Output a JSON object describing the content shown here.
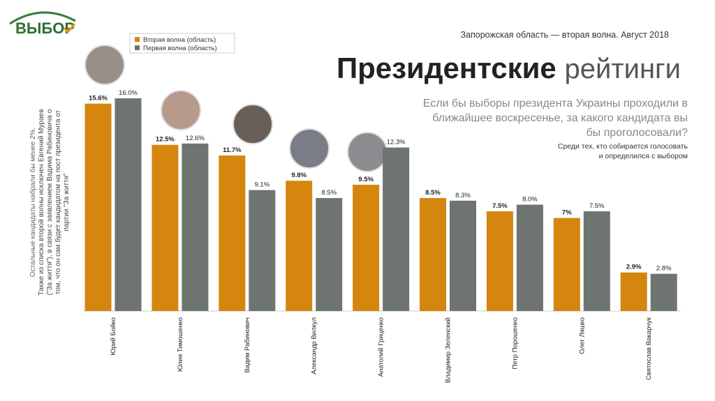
{
  "logo": "ВЫБОР",
  "chart_data": {
    "type": "bar",
    "title": [
      "Президентские",
      "рейтинги"
    ],
    "subtitle": "Запорожская область — вторая волна. Август 2018",
    "question": [
      "Если бы выборы президента Украины проходили в",
      "ближайшее воскресенье, за какого кандидата вы",
      "бы проголосовали?"
    ],
    "note": [
      "Среди тех, кто собирается голосовать",
      "и определился с выбором"
    ],
    "side_note": [
      "Остальные кандидаты набрали бы менее 2%.",
      "Также из списка второй волны исключен Евгений Мураев",
      "(\"За життя\"), в связи с заявлением Вадима Рабиновича о",
      "том, что он сам будет кандидатом на пост президента от",
      "партии \"За життя\""
    ],
    "categories": [
      "Юрий Бойко",
      "Юлия Тимошенко",
      "Вадим Рабинович",
      "Александр Вилкул",
      "Анатолий Гриценко",
      "Владимир Зеленский",
      "Петр Порошенко",
      "Олег Ляшко",
      "Святослав Вакарчук"
    ],
    "series": [
      {
        "name": "Вторая волна (область)",
        "color": "#d4860f",
        "values": [
          15.6,
          12.5,
          11.7,
          9.8,
          9.5,
          8.5,
          7.5,
          7,
          2.9
        ],
        "value_labels": [
          "15.6%",
          "12.5%",
          "11.7%",
          "9.8%",
          "9.5%",
          "8.5%",
          "7.5%",
          "7%",
          "2.9%"
        ]
      },
      {
        "name": "Первая волна (область)",
        "color": "#6e7470",
        "values": [
          16.0,
          12.6,
          9.1,
          8.5,
          12.3,
          8.3,
          8.0,
          7.5,
          2.8
        ],
        "value_labels": [
          "16.0%",
          "12.6%",
          "9.1%",
          "8.5%",
          "12.3%",
          "8.3%",
          "8.0%",
          "7.5%",
          "2.8%"
        ]
      }
    ],
    "ylim": [
      0,
      16
    ]
  }
}
